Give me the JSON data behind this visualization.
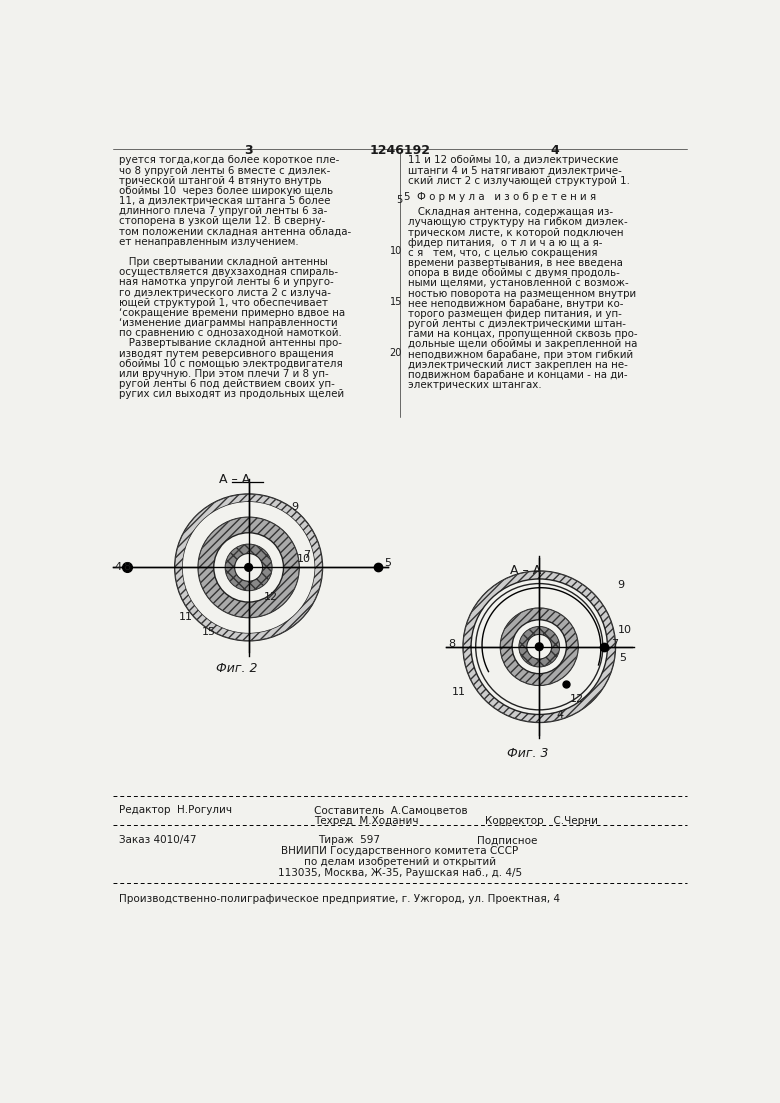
{
  "bg_color": "#f2f2ee",
  "text_color": "#1a1a1a",
  "page_number_left": "3",
  "page_number_center": "1246192",
  "page_number_right": "4",
  "col1_text": [
    "руется тогда,когда более короткое пле-",
    "чо 8 упругой ленты 6 вместе с диэлек-",
    "трической штангой 4 втянуто внутрь",
    "обоймы 10  через более широкую щель",
    "11, а диэлектрическая штанга 5 более",
    "длинного плеча 7 упругой ленты 6 за-",
    "стопорена в узкой щели 12. В сверну-",
    "том положении складная антенна облада-",
    "ет ненаправленным излучением.",
    "",
    "   При свертывании складной антенны",
    "осуществляется двухзаходная спираль-",
    "ная намотка упругой ленты 6 и упруго-",
    "го диэлектрического листа 2 с излуча-",
    "ющей структурой 1, что обеспечивает",
    "‘сокращение времени примерно вдвое на",
    "‘изменение диаграммы направленности",
    "по сравнению с однозаходной намоткой.",
    "   Развертывание складной антенны про-",
    "изводят путем реверсивного вращения",
    "обоймы 10 с помощью электродвигателя",
    "или вручную. При этом плечи 7 и 8 уп-",
    "ругой ленты 6 под действием своих уп-",
    "ругих сил выходят из продольных щелей"
  ],
  "col2_text_top": [
    "11 и 12 обоймы 10, а диэлектрические",
    "штанги 4 и 5 натягивают диэлектриче-",
    "ский лист 2 с излучающей структурой 1."
  ],
  "formula_label": "5  Ф о р м у л а   и з о б р е т е н и я",
  "col2_text_body": [
    "   Складная антенна, содержащая из-",
    "лучающую структуру на гибком диэлек-",
    "трическом листе, к которой подключен",
    "фидер питания,  о т л и ч а ю щ а я-",
    "с я   тем, что, с целью сокращения",
    "времени развертывания, в нее введена",
    "опора в виде обоймы с двумя продоль-",
    "ными щелями, установленной с возмож-",
    "ностью поворота на размещенном внутри",
    "нее неподвижном барабане, внутри ко-",
    "торого размещен фидер питания, и уп-",
    "ругой ленты с диэлектрическими штан-",
    "гами на концах, пропущенной сквозь про-",
    "дольные щели обоймы и закрепленной на",
    "неподвижном барабане, при этом гибкий",
    "диэлектрический лист закреплен на не-",
    "подвижном барабане и концами - на ди-",
    "электрических штангах."
  ],
  "fig2_label": "Фиг. 2",
  "fig3_label": "Фиг. 3",
  "vniiipi_line1": "ВНИИПИ Государственного комитета СССР",
  "vniiipi_line2": "по делам изобретений и открытий",
  "vniiipi_line3": "113035, Москва, Ж-35, Раушская наб., д. 4/5",
  "factory_line": "Производственно-полиграфическое предприятие, г. Ужгород, ул. Проектная, 4"
}
